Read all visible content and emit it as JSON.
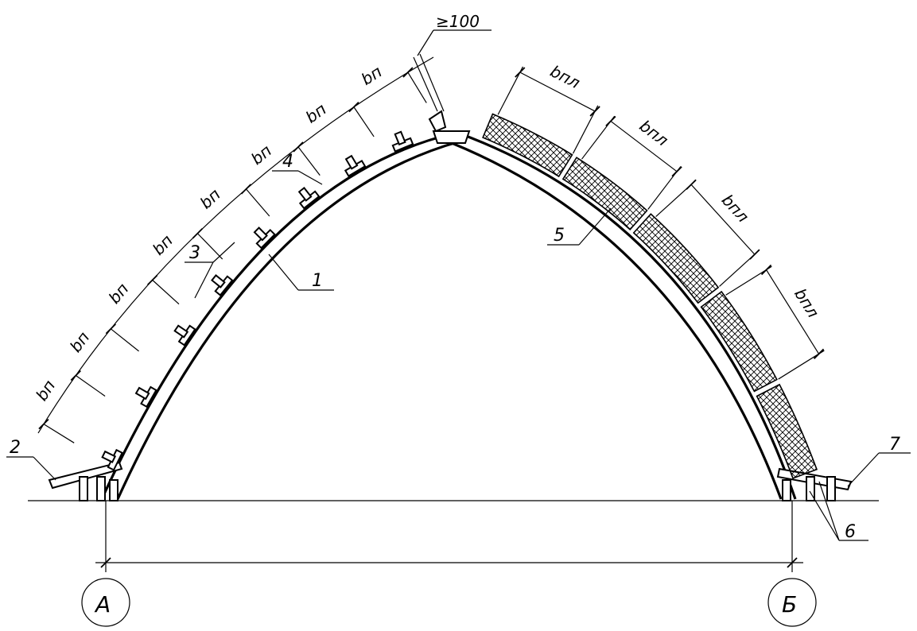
{
  "drawing": {
    "callouts": [
      {
        "id": "1",
        "text": "1"
      },
      {
        "id": "2",
        "text": "2"
      },
      {
        "id": "3",
        "text": "3"
      },
      {
        "id": "4",
        "text": "4"
      },
      {
        "id": "5",
        "text": "5"
      },
      {
        "id": "6",
        "text": "6"
      },
      {
        "id": "7",
        "text": "7"
      }
    ],
    "purlin_spacing_label": "bп",
    "panel_width_label": "bпл",
    "min_offset_label": "≥100",
    "axes": [
      {
        "id": "A",
        "text": "А"
      },
      {
        "id": "B",
        "text": "Б"
      }
    ]
  }
}
